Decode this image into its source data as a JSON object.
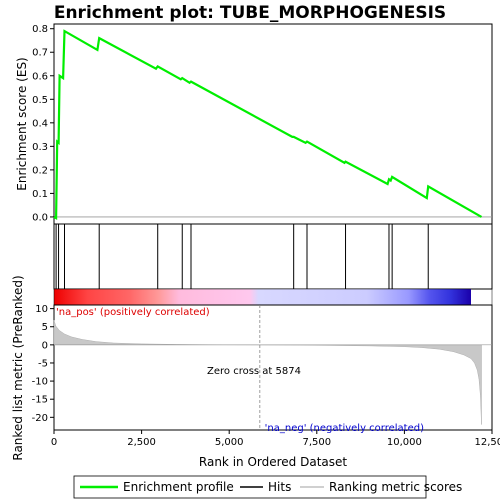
{
  "chart_data": {
    "type": "line",
    "title": "Enrichment plot: TUBE_MORPHOGENESIS",
    "top_panel": {
      "ylabel": "Enrichment score (ES)",
      "ylim": [
        -0.03,
        0.82
      ],
      "yticks": [
        "0.0",
        "0.1",
        "0.2",
        "0.3",
        "0.4",
        "0.5",
        "0.6",
        "0.7",
        "0.8"
      ],
      "ytick_values": [
        0.0,
        0.1,
        0.2,
        0.3,
        0.4,
        0.5,
        0.6,
        0.7,
        0.8
      ],
      "series": [
        {
          "name": "Enrichment profile",
          "color": "#00ee00",
          "x": [
            0,
            60,
            90,
            130,
            160,
            260,
            300,
            1240,
            1290,
            2910,
            2960,
            3620,
            3660,
            3870,
            3910,
            6800,
            6840,
            7180,
            7220,
            8290,
            8320,
            9520,
            9560,
            9610,
            9650,
            10640,
            10680,
            12200
          ],
          "y": [
            0.0,
            -0.005,
            0.32,
            0.315,
            0.6,
            0.59,
            0.79,
            0.71,
            0.76,
            0.63,
            0.64,
            0.585,
            0.59,
            0.57,
            0.575,
            0.34,
            0.34,
            0.315,
            0.32,
            0.23,
            0.235,
            0.14,
            0.16,
            0.155,
            0.17,
            0.08,
            0.13,
            0.0
          ]
        }
      ]
    },
    "hits": [
      60,
      130,
      300,
      1290,
      2960,
      3660,
      3910,
      6840,
      7220,
      8320,
      9560,
      9650,
      10680
    ],
    "bottom_panel": {
      "ylabel": "Ranked list metric (PreRanked)",
      "xlabel": "Rank in Ordered Dataset",
      "ylim": [
        -23.5,
        11
      ],
      "yticks": [
        "10",
        "5",
        "0",
        "-5",
        "-10",
        "-15",
        "-20"
      ],
      "ytick_values": [
        10,
        5,
        0,
        -5,
        -10,
        -15,
        -20
      ],
      "xlim": [
        0,
        12500
      ],
      "xticks": [
        "0",
        "2,500",
        "5,000",
        "7,500",
        "10,000",
        "12,500"
      ],
      "xtick_values": [
        0,
        2500,
        5000,
        7500,
        10000,
        12500
      ],
      "metric_x": [
        0,
        50,
        150,
        300,
        500,
        800,
        1200,
        1700,
        2500,
        3500,
        4500,
        5874,
        7000,
        8000,
        9000,
        10000,
        10500,
        11000,
        11400,
        11700,
        11900,
        12000,
        12080,
        12130,
        12170,
        12200
      ],
      "metric_y": [
        6.8,
        5.2,
        4.0,
        3.0,
        2.2,
        1.5,
        0.9,
        0.5,
        0.25,
        0.12,
        0.05,
        0.0,
        -0.08,
        -0.18,
        -0.3,
        -0.5,
        -0.75,
        -1.2,
        -1.9,
        -2.8,
        -3.8,
        -5.0,
        -7.0,
        -9.5,
        -14.0,
        -22.0
      ],
      "zero_cross_x": 5874,
      "zero_cross_label": "Zero cross at 5874",
      "pos_label": "'na_pos' (positively correlated)",
      "neg_label": "'na_neg' (negatively correlated)"
    },
    "total_ranks": 12200,
    "legend": {
      "placement": "bottom",
      "entries": [
        "Enrichment profile",
        "Hits",
        "Ranking metric scores"
      ]
    },
    "colors": {
      "profile": "#00ee00",
      "hits": "#000000",
      "metric": "#c0c0c0",
      "pos_label": "#dd0000",
      "neg_label": "#0000cc"
    }
  }
}
